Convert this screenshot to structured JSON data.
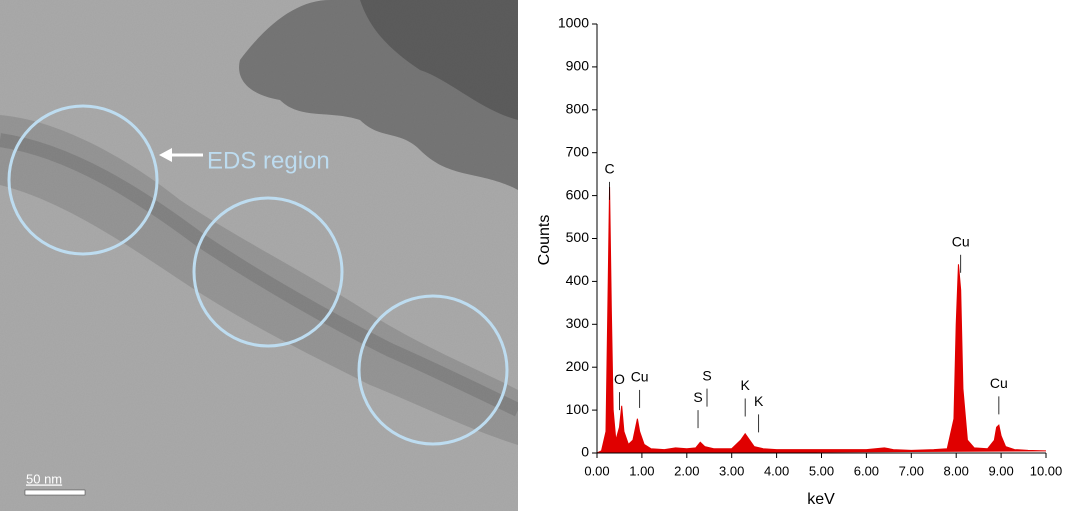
{
  "image": {
    "region_label": "EDS region",
    "scale_bar": "50 nm"
  },
  "chart_data": {
    "type": "area",
    "color": "#e00000",
    "x_label": "keV",
    "y_label": "Counts",
    "x": [
      0.0,
      0.1,
      0.2,
      0.25,
      0.28,
      0.32,
      0.36,
      0.42,
      0.5,
      0.55,
      0.6,
      0.7,
      0.8,
      0.9,
      0.95,
      1.05,
      1.2,
      1.5,
      1.75,
      2.0,
      2.2,
      2.3,
      2.4,
      2.6,
      3.0,
      3.2,
      3.3,
      3.4,
      3.5,
      3.7,
      4.0,
      4.5,
      5.0,
      5.5,
      6.0,
      6.4,
      6.6,
      7.0,
      7.5,
      7.8,
      7.95,
      8.0,
      8.05,
      8.1,
      8.15,
      8.25,
      8.4,
      8.7,
      8.85,
      8.9,
      8.95,
      9.0,
      9.1,
      9.3,
      9.6,
      10.0
    ],
    "values": [
      0,
      5,
      50,
      400,
      620,
      330,
      100,
      30,
      60,
      110,
      50,
      20,
      30,
      80,
      50,
      20,
      10,
      8,
      12,
      10,
      12,
      25,
      15,
      10,
      10,
      30,
      45,
      30,
      15,
      10,
      8,
      8,
      8,
      8,
      8,
      12,
      8,
      6,
      8,
      10,
      80,
      300,
      440,
      380,
      150,
      30,
      12,
      10,
      30,
      60,
      65,
      40,
      15,
      8,
      6,
      5
    ],
    "xlim": [
      0,
      10
    ],
    "ylim": [
      0,
      1000
    ],
    "xticks": [
      {
        "value": 0,
        "label": "0.00"
      },
      {
        "value": 1,
        "label": "1.00"
      },
      {
        "value": 2,
        "label": "2.00"
      },
      {
        "value": 3,
        "label": "3.00"
      },
      {
        "value": 4,
        "label": "4.00"
      },
      {
        "value": 5,
        "label": "5.00"
      },
      {
        "value": 6,
        "label": "6.00"
      },
      {
        "value": 7,
        "label": "7.00"
      },
      {
        "value": 8,
        "label": "8.00"
      },
      {
        "value": 9,
        "label": "9.00"
      },
      {
        "value": 10,
        "label": "10.00"
      }
    ],
    "yticks": [
      0,
      100,
      200,
      300,
      400,
      500,
      600,
      700,
      800,
      900,
      1000
    ],
    "annotations": [
      {
        "text": "C",
        "x": 0.28,
        "y": 660
      },
      {
        "text": "O",
        "x": 0.5,
        "y": 170
      },
      {
        "text": "Cu",
        "x": 0.95,
        "y": 175
      },
      {
        "text": "S",
        "x": 2.25,
        "y": 128
      },
      {
        "text": "S",
        "x": 2.45,
        "y": 178
      },
      {
        "text": "K",
        "x": 3.3,
        "y": 155
      },
      {
        "text": "K",
        "x": 3.6,
        "y": 118
      },
      {
        "text": "Cu",
        "x": 8.1,
        "y": 490
      },
      {
        "text": "Cu",
        "x": 8.95,
        "y": 160
      }
    ]
  }
}
